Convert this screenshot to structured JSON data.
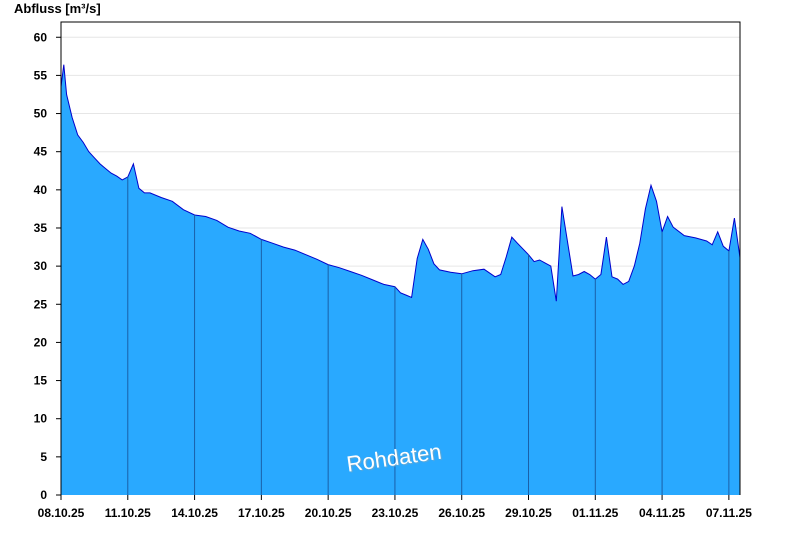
{
  "chart_data": {
    "type": "area",
    "ylabel": "Abfluss [m³/s]",
    "ylim": [
      0,
      62
    ],
    "yticks": [
      0,
      5,
      10,
      15,
      20,
      25,
      30,
      35,
      40,
      45,
      50,
      55,
      60
    ],
    "xlim": [
      "2025-10-08",
      "2025-11-07T12:00"
    ],
    "xtick_labels": [
      "08.10.25",
      "11.10.25",
      "14.10.25",
      "17.10.25",
      "20.10.25",
      "23.10.25",
      "26.10.25",
      "29.10.25",
      "01.11.25",
      "04.11.25",
      "07.11.25"
    ],
    "xtick_dates": [
      "2025-10-08",
      "2025-10-11",
      "2025-10-14",
      "2025-10-17",
      "2025-10-20",
      "2025-10-23",
      "2025-10-26",
      "2025-10-29",
      "2025-11-01",
      "2025-11-04",
      "2025-11-07"
    ],
    "fill_color": "#29a9ff",
    "line_color": "#0000cc",
    "grid": "horizontal",
    "annotation": "Rohdaten",
    "x": [
      "2025-10-08T00:00",
      "2025-10-08T03:00",
      "2025-10-08T06:00",
      "2025-10-08T12:00",
      "2025-10-08T18:00",
      "2025-10-09T00:00",
      "2025-10-09T06:00",
      "2025-10-09T12:00",
      "2025-10-09T18:00",
      "2025-10-10T00:00",
      "2025-10-10T06:00",
      "2025-10-10T12:00",
      "2025-10-10T18:00",
      "2025-10-11T00:00",
      "2025-10-11T06:00",
      "2025-10-11T12:00",
      "2025-10-11T18:00",
      "2025-10-12T00:00",
      "2025-10-12T12:00",
      "2025-10-13T00:00",
      "2025-10-13T12:00",
      "2025-10-14T00:00",
      "2025-10-14T12:00",
      "2025-10-15T00:00",
      "2025-10-15T12:00",
      "2025-10-16T00:00",
      "2025-10-16T12:00",
      "2025-10-17T00:00",
      "2025-10-17T12:00",
      "2025-10-18T00:00",
      "2025-10-18T12:00",
      "2025-10-19T00:00",
      "2025-10-19T12:00",
      "2025-10-20T00:00",
      "2025-10-20T12:00",
      "2025-10-21T00:00",
      "2025-10-21T12:00",
      "2025-10-22T00:00",
      "2025-10-22T12:00",
      "2025-10-23T00:00",
      "2025-10-23T06:00",
      "2025-10-23T12:00",
      "2025-10-23T18:00",
      "2025-10-24T00:00",
      "2025-10-24T06:00",
      "2025-10-24T12:00",
      "2025-10-24T18:00",
      "2025-10-25T00:00",
      "2025-10-25T12:00",
      "2025-10-26T00:00",
      "2025-10-26T12:00",
      "2025-10-27T00:00",
      "2025-10-27T12:00",
      "2025-10-27T18:00",
      "2025-10-28T00:00",
      "2025-10-28T06:00",
      "2025-10-28T12:00",
      "2025-10-29T00:00",
      "2025-10-29T06:00",
      "2025-10-29T12:00",
      "2025-10-29T18:00",
      "2025-10-30T00:00",
      "2025-10-30T06:00",
      "2025-10-30T12:00",
      "2025-10-31T00:00",
      "2025-10-31T06:00",
      "2025-10-31T12:00",
      "2025-10-31T18:00",
      "2025-11-01T00:00",
      "2025-11-01T06:00",
      "2025-11-01T12:00",
      "2025-11-01T18:00",
      "2025-11-02T00:00",
      "2025-11-02T06:00",
      "2025-11-02T12:00",
      "2025-11-02T18:00",
      "2025-11-03T00:00",
      "2025-11-03T06:00",
      "2025-11-03T12:00",
      "2025-11-03T18:00",
      "2025-11-04T00:00",
      "2025-11-04T06:00",
      "2025-11-04T12:00",
      "2025-11-05T00:00",
      "2025-11-05T12:00",
      "2025-11-06T00:00",
      "2025-11-06T06:00",
      "2025-11-06T12:00",
      "2025-11-06T18:00",
      "2025-11-07T00:00",
      "2025-11-07T06:00",
      "2025-11-07T12:00"
    ],
    "y": [
      53.5,
      56.4,
      52.5,
      49.5,
      47.2,
      46.2,
      45.0,
      44.2,
      43.4,
      42.8,
      42.2,
      41.8,
      41.3,
      41.7,
      43.4,
      40.2,
      39.6,
      39.6,
      39.0,
      38.5,
      37.4,
      36.7,
      36.5,
      36.0,
      35.1,
      34.6,
      34.3,
      33.5,
      33.0,
      32.5,
      32.1,
      31.5,
      30.9,
      30.2,
      29.8,
      29.3,
      28.8,
      28.2,
      27.6,
      27.3,
      26.5,
      26.2,
      25.9,
      31.0,
      33.5,
      32.2,
      30.3,
      29.5,
      29.2,
      29.0,
      29.4,
      29.6,
      28.6,
      28.9,
      31.2,
      33.8,
      33.0,
      31.5,
      30.6,
      30.8,
      30.4,
      30.0,
      25.4,
      37.8,
      28.7,
      28.9,
      29.3,
      28.9,
      28.3,
      28.9,
      33.8,
      28.6,
      28.3,
      27.6,
      28.0,
      30.0,
      33.0,
      37.5,
      40.6,
      38.5,
      34.5,
      36.5,
      35.1,
      34.0,
      33.7,
      33.3,
      32.8,
      34.5,
      32.6,
      32.0,
      36.3,
      31.1
    ]
  }
}
